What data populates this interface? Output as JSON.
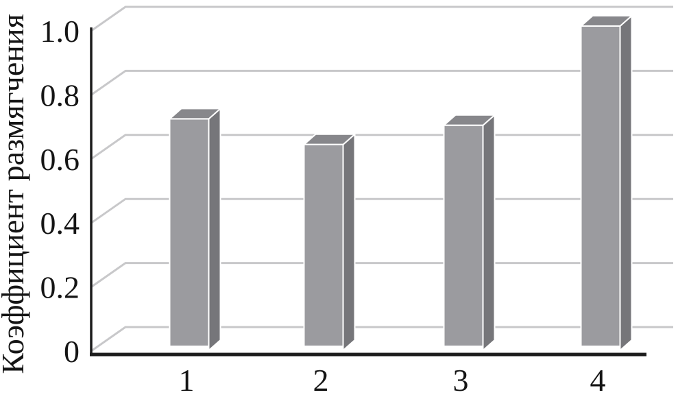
{
  "chart_data": {
    "type": "bar",
    "projection": "3d",
    "title": "",
    "xlabel": "",
    "ylabel": "Коэффициент размягчения",
    "categories": [
      "1",
      "2",
      "3",
      "4"
    ],
    "values": [
      0.71,
      0.63,
      0.69,
      1.0
    ],
    "series": [
      {
        "name": "Коэффициент размягчения",
        "values": [
          0.71,
          0.63,
          0.69,
          1.0
        ]
      }
    ],
    "ylim": [
      0,
      1.0
    ],
    "yticks": [
      {
        "value": 0,
        "label": "0"
      },
      {
        "value": 0.2,
        "label": "0.2"
      },
      {
        "value": 0.4,
        "label": "0.4"
      },
      {
        "value": 0.6,
        "label": "0.6"
      },
      {
        "value": 0.8,
        "label": "0.8"
      },
      {
        "value": 1.0,
        "label": "1.0"
      }
    ],
    "grid": true,
    "legend": false,
    "colors": {
      "bar_front": "#9B9B9F",
      "bar_side": "#76767A",
      "bar_top": "#87878B",
      "bar_edge": "#FFFFFF",
      "gridline": "#C8C8CA",
      "axis": "#1C1C1C",
      "text": "#151515",
      "background": "#FFFFFF"
    }
  }
}
